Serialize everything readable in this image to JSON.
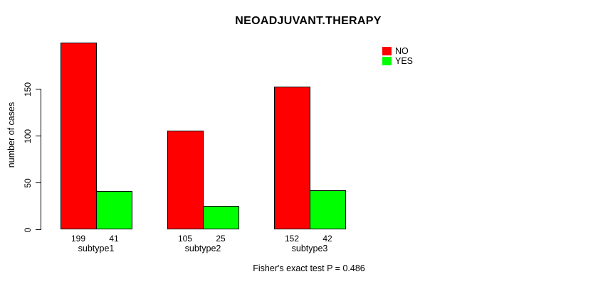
{
  "chart_data": {
    "type": "bar",
    "title": "NEOADJUVANT.THERAPY",
    "ylabel": "number of cases",
    "xlabel": "",
    "categories": [
      "subtype1",
      "subtype2",
      "subtype3"
    ],
    "series": [
      {
        "name": "NO",
        "color": "#FF0000",
        "values": [
          199,
          105,
          152
        ]
      },
      {
        "name": "YES",
        "color": "#00FF00",
        "values": [
          41,
          25,
          42
        ]
      }
    ],
    "yticks": [
      0,
      50,
      100,
      150
    ],
    "ylim": [
      0,
      205
    ],
    "grid": false,
    "bar_value_labels_shown": true,
    "legend_position": "top-right",
    "legend": [
      {
        "label": "NO",
        "color": "#FF0000"
      },
      {
        "label": "YES",
        "color": "#00FF00"
      }
    ],
    "annotation": "Fisher's exact test P = 0.486",
    "background": "#FFFFFF",
    "bar_border_color": "#000000"
  }
}
